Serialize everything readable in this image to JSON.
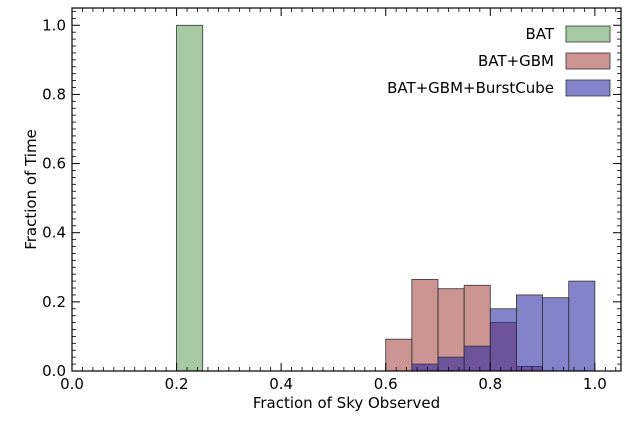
{
  "chart_data": {
    "type": "bar",
    "xlabel": "Fraction of Sky Observed",
    "ylabel": "Fraction of Time",
    "xlim": [
      0.0,
      1.05
    ],
    "ylim": [
      0.0,
      1.05
    ],
    "xticks": [
      "0.0",
      "0.2",
      "0.4",
      "0.6",
      "0.8",
      "1.0"
    ],
    "yticks": [
      "0.0",
      "0.2",
      "0.4",
      "0.6",
      "0.8",
      "1.0"
    ],
    "grid": false,
    "legend_position": "top-right",
    "bin_width": 0.05,
    "series": [
      {
        "name": "BAT",
        "color": "#5d9c59",
        "bins": [
          {
            "x": 0.2,
            "value": 1.0
          }
        ]
      },
      {
        "name": "BAT+GBM",
        "color": "#a43d3d",
        "bins": [
          {
            "x": 0.6,
            "value": 0.092
          },
          {
            "x": 0.65,
            "value": 0.265
          },
          {
            "x": 0.7,
            "value": 0.238
          },
          {
            "x": 0.75,
            "value": 0.248
          },
          {
            "x": 0.8,
            "value": 0.14
          },
          {
            "x": 0.85,
            "value": 0.013
          }
        ]
      },
      {
        "name": "BAT+GBM+BurstCube",
        "color": "#1e1e9e",
        "bins": [
          {
            "x": 0.65,
            "value": 0.02
          },
          {
            "x": 0.7,
            "value": 0.04
          },
          {
            "x": 0.75,
            "value": 0.072
          },
          {
            "x": 0.8,
            "value": 0.18
          },
          {
            "x": 0.85,
            "value": 0.22
          },
          {
            "x": 0.9,
            "value": 0.212
          },
          {
            "x": 0.95,
            "value": 0.26
          }
        ]
      }
    ]
  }
}
